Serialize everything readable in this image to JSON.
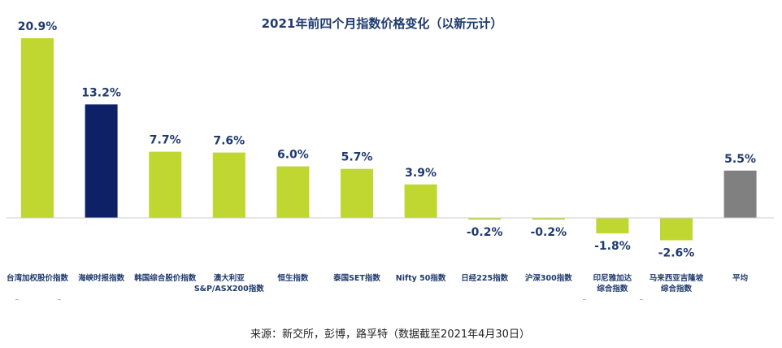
{
  "chart_data": {
    "type": "bar",
    "title": "2021年前四个月指数价格变化（以新元计）",
    "categories": [
      [
        "台湾加权股价指数"
      ],
      [
        "海峡时报指数"
      ],
      [
        "韩国综合股价指数"
      ],
      [
        "澳大利亚",
        "S&P/ASX200指数"
      ],
      [
        "恒生指数"
      ],
      [
        "泰国SET指数"
      ],
      [
        "Nifty 50指数"
      ],
      [
        "日经225指数"
      ],
      [
        "沪深300指数"
      ],
      [
        "印尼雅加达",
        "综合指数"
      ],
      [
        "马来西亚吉隆坡",
        "综合指数"
      ],
      [
        "平均"
      ]
    ],
    "values": [
      20.9,
      13.2,
      7.7,
      7.6,
      6.0,
      5.7,
      3.9,
      -0.2,
      -0.2,
      -1.8,
      -2.6,
      5.5
    ],
    "value_labels": [
      "20.9%",
      "13.2%",
      "7.7%",
      "7.6%",
      "6.0%",
      "5.7%",
      "3.9%",
      "-0.2%",
      "-0.2%",
      "-1.8%",
      "-2.6%",
      "5.5%"
    ],
    "bar_colors": [
      "#bfd730",
      "#0e2167",
      "#bfd730",
      "#bfd730",
      "#bfd730",
      "#bfd730",
      "#bfd730",
      "#bfd730",
      "#bfd730",
      "#bfd730",
      "#bfd730",
      "#808080"
    ],
    "ylim": [
      -2.6,
      20.9
    ],
    "grid": false,
    "legend": "none"
  },
  "footer": {
    "source": "来源：新交所，彭博，路孚特（数据截至2021年4月30日）"
  }
}
